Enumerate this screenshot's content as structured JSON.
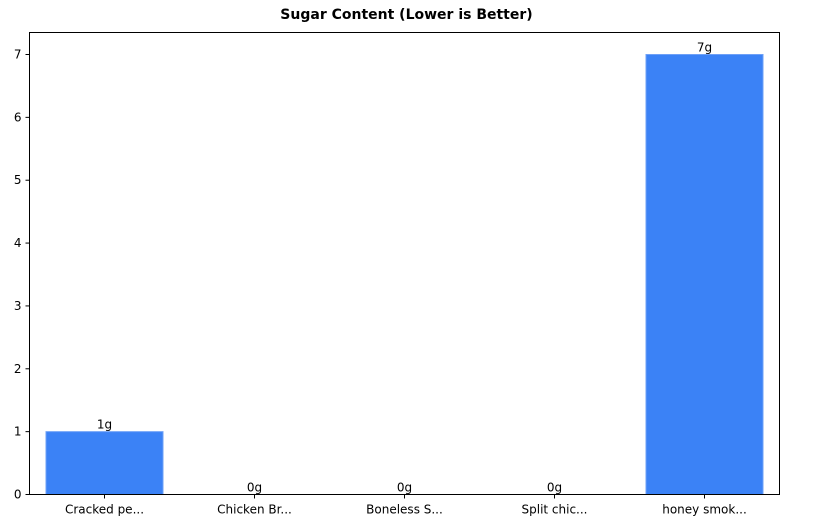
{
  "chart_data": {
    "type": "bar",
    "title": "Sugar Content (Lower is Better)",
    "xlabel": "",
    "ylabel": "",
    "categories": [
      "Cracked pe...",
      "Chicken Br...",
      "Boneless S...",
      "Split chic...",
      "honey smok..."
    ],
    "values": [
      1,
      0,
      0,
      0,
      7
    ],
    "data_labels": [
      "1g",
      "0g",
      "0g",
      "0g",
      "7g"
    ],
    "ylim": [
      0,
      7.35
    ],
    "yticks": [
      0,
      1,
      2,
      3,
      4,
      5,
      6,
      7
    ],
    "grid": false,
    "legend": null,
    "bar_color": "#3b82f6"
  }
}
